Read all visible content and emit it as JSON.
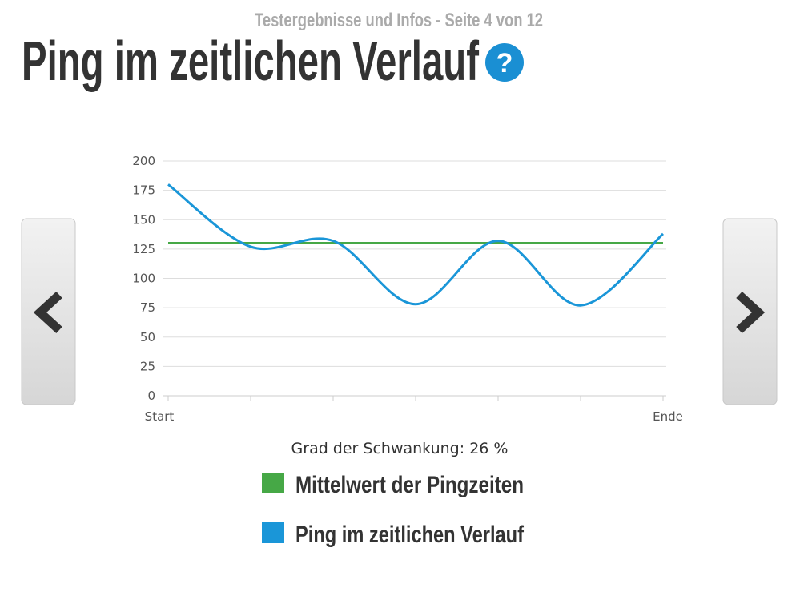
{
  "header": {
    "subtitle": "Testergebnisse und Infos - Seite 4 von 12",
    "title": "Ping im zeitlichen Verlauf",
    "help_icon": "?"
  },
  "chart_data": {
    "type": "line",
    "categories": [
      "Start",
      null,
      null,
      null,
      null,
      null,
      "Ende"
    ],
    "series": [
      {
        "name": "Mittelwert der Pingzeiten",
        "color": "#46a846",
        "values": [
          130,
          130,
          130,
          130,
          130,
          130,
          130
        ]
      },
      {
        "name": "Ping im zeitlichen Verlauf",
        "color": "#1a96d8",
        "values": [
          180,
          127,
          132,
          78,
          132,
          77,
          138
        ],
        "smooth": true
      }
    ],
    "ylim": [
      0,
      200
    ],
    "yticks": [
      0,
      25,
      50,
      75,
      100,
      125,
      150,
      175,
      200
    ],
    "grid": true
  },
  "statistic": "Grad der Schwankung: 26 %"
}
